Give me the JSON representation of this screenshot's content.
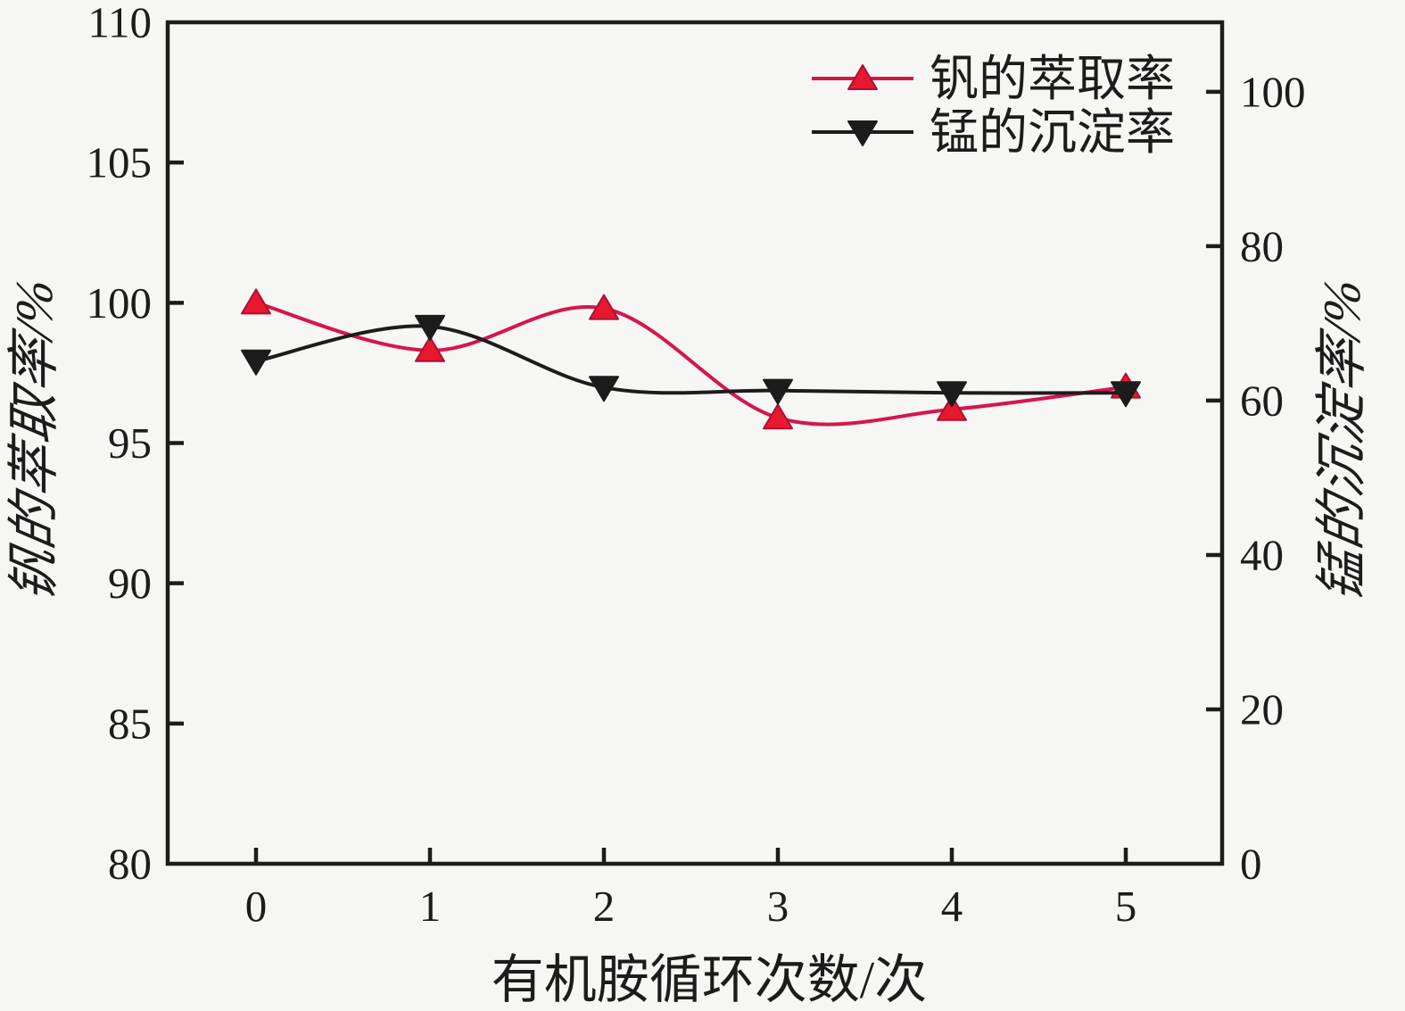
{
  "chart_data": {
    "type": "line",
    "title": "",
    "xlabel": "有机胺循环次数/次",
    "x": [
      0,
      1,
      2,
      3,
      4,
      5
    ],
    "x_tick_labels": [
      "0",
      "1",
      "2",
      "3",
      "4",
      "5"
    ],
    "left_axis": {
      "label": "钒的萃取率/%",
      "min": 80,
      "max": 110,
      "ticks": [
        80,
        85,
        90,
        95,
        100,
        105,
        110
      ]
    },
    "right_axis": {
      "label": "锰的沉淀率/%",
      "min": 0,
      "max": 109,
      "ticks": [
        0,
        20,
        40,
        60,
        80,
        100
      ]
    },
    "series": [
      {
        "name": "钒的萃取率",
        "axis": "left",
        "marker": "triangle-up",
        "line_color": "#d6164b",
        "marker_color": "#e8182f",
        "values": [
          100.0,
          98.3,
          99.8,
          95.9,
          96.2,
          97.0
        ]
      },
      {
        "name": "锰的沉淀率",
        "axis": "right",
        "marker": "triangle-down",
        "line_color": "#1c1c1c",
        "marker_color": "#1c1c1c",
        "values": [
          65.1,
          69.6,
          61.7,
          61.3,
          61.0,
          61.0
        ]
      }
    ],
    "legend": {
      "position": "top-right",
      "items": [
        "钒的萃取率",
        "锰的沉淀率"
      ]
    },
    "grid": false,
    "smooth": true,
    "frame_color": "#1c1c1c",
    "background_color": "#f6f6f4"
  }
}
